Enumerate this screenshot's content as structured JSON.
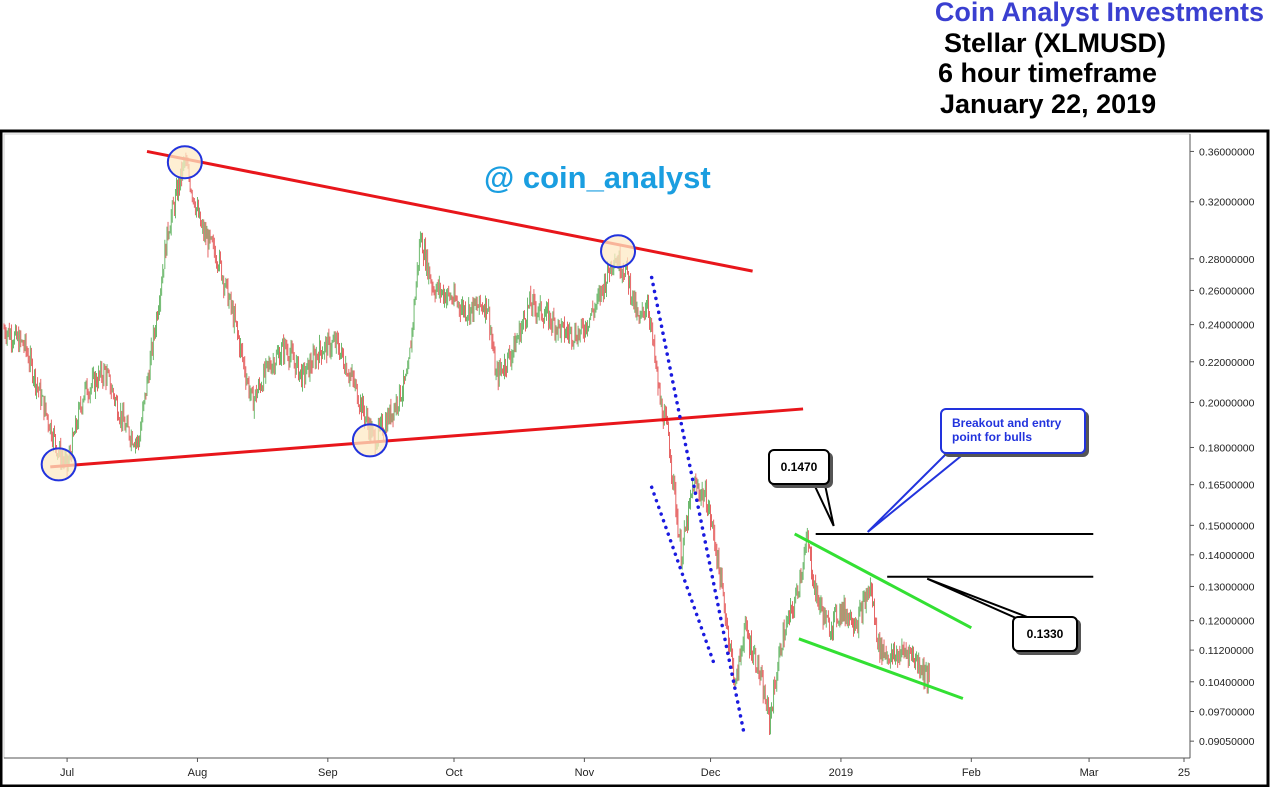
{
  "header": {
    "brand": "Coin Analyst Investments",
    "line1": "Stellar (XLMUSD)",
    "line2": "6 hour timeframe",
    "line3": "January 22, 2019"
  },
  "watermark": "@ coin_analyst",
  "callouts": {
    "level_high": "0.1470",
    "level_low": "0.1330",
    "breakout": "Breakout and entry point for bulls"
  },
  "colors": {
    "brand": "#3a3fd0",
    "handle": "#1a9ee0",
    "trendline": "#e8161b",
    "channel": "#33e033",
    "dotted": "#1a1adf",
    "circle": "#2233dd",
    "up_candle": "#4aa84a",
    "down_candle": "#e04040"
  },
  "chart_data": {
    "type": "line",
    "subtype": "candlestick",
    "timeframe": "6 hour",
    "x_ticks": [
      "Jul",
      "Aug",
      "Sep",
      "Oct",
      "Nov",
      "Dec",
      "2019",
      "Feb",
      "Mar",
      "25"
    ],
    "y_ticks": [
      "0.36000000",
      "0.32000000",
      "0.28000000",
      "0.26000000",
      "0.24000000",
      "0.22000000",
      "0.20000000",
      "0.18000000",
      "0.16500000",
      "0.15000000",
      "0.14000000",
      "0.13000000",
      "0.12000000",
      "0.11200000",
      "0.10400000",
      "0.09700000",
      "0.09050000"
    ],
    "y_scale": "log",
    "ylim": [
      0.087,
      0.375
    ],
    "xlim": [
      "2018-06-16",
      "2019-03-25"
    ],
    "price_path": [
      {
        "date": "2018-06-16",
        "close": 0.238
      },
      {
        "date": "2018-06-21",
        "close": 0.228
      },
      {
        "date": "2018-06-26",
        "close": 0.195
      },
      {
        "date": "2018-06-29",
        "close": 0.178
      },
      {
        "date": "2018-07-01",
        "close": 0.172
      },
      {
        "date": "2018-07-05",
        "close": 0.205
      },
      {
        "date": "2018-07-10",
        "close": 0.215
      },
      {
        "date": "2018-07-15",
        "close": 0.188
      },
      {
        "date": "2018-07-18",
        "close": 0.182
      },
      {
        "date": "2018-07-22",
        "close": 0.24
      },
      {
        "date": "2018-07-25",
        "close": 0.3
      },
      {
        "date": "2018-07-29",
        "close": 0.352
      },
      {
        "date": "2018-08-02",
        "close": 0.3
      },
      {
        "date": "2018-08-06",
        "close": 0.28
      },
      {
        "date": "2018-08-10",
        "close": 0.24
      },
      {
        "date": "2018-08-14",
        "close": 0.2
      },
      {
        "date": "2018-08-18",
        "close": 0.218
      },
      {
        "date": "2018-08-22",
        "close": 0.228
      },
      {
        "date": "2018-08-26",
        "close": 0.212
      },
      {
        "date": "2018-08-30",
        "close": 0.226
      },
      {
        "date": "2018-09-03",
        "close": 0.23
      },
      {
        "date": "2018-09-07",
        "close": 0.21
      },
      {
        "date": "2018-09-12",
        "close": 0.183
      },
      {
        "date": "2018-09-16",
        "close": 0.195
      },
      {
        "date": "2018-09-20",
        "close": 0.212
      },
      {
        "date": "2018-09-23",
        "close": 0.295
      },
      {
        "date": "2018-09-26",
        "close": 0.262
      },
      {
        "date": "2018-09-30",
        "close": 0.256
      },
      {
        "date": "2018-10-04",
        "close": 0.248
      },
      {
        "date": "2018-10-09",
        "close": 0.252
      },
      {
        "date": "2018-10-11",
        "close": 0.212
      },
      {
        "date": "2018-10-15",
        "close": 0.226
      },
      {
        "date": "2018-10-19",
        "close": 0.252
      },
      {
        "date": "2018-10-23",
        "close": 0.245
      },
      {
        "date": "2018-10-27",
        "close": 0.236
      },
      {
        "date": "2018-10-31",
        "close": 0.235
      },
      {
        "date": "2018-11-04",
        "close": 0.252
      },
      {
        "date": "2018-11-08",
        "close": 0.282
      },
      {
        "date": "2018-11-11",
        "close": 0.272
      },
      {
        "date": "2018-11-14",
        "close": 0.24
      },
      {
        "date": "2018-11-16",
        "close": 0.255
      },
      {
        "date": "2018-11-19",
        "close": 0.2
      },
      {
        "date": "2018-11-21",
        "close": 0.185
      },
      {
        "date": "2018-11-24",
        "close": 0.14
      },
      {
        "date": "2018-11-27",
        "close": 0.165
      },
      {
        "date": "2018-11-30",
        "close": 0.16
      },
      {
        "date": "2018-12-02",
        "close": 0.145
      },
      {
        "date": "2018-12-05",
        "close": 0.118
      },
      {
        "date": "2018-12-07",
        "close": 0.103
      },
      {
        "date": "2018-12-09",
        "close": 0.118
      },
      {
        "date": "2018-12-12",
        "close": 0.109
      },
      {
        "date": "2018-12-15",
        "close": 0.095
      },
      {
        "date": "2018-12-18",
        "close": 0.115
      },
      {
        "date": "2018-12-21",
        "close": 0.125
      },
      {
        "date": "2018-12-24",
        "close": 0.145
      },
      {
        "date": "2018-12-26",
        "close": 0.128
      },
      {
        "date": "2018-12-29",
        "close": 0.118
      },
      {
        "date": "2019-01-01",
        "close": 0.123
      },
      {
        "date": "2019-01-05",
        "close": 0.12
      },
      {
        "date": "2019-01-08",
        "close": 0.13
      },
      {
        "date": "2019-01-10",
        "close": 0.113
      },
      {
        "date": "2019-01-13",
        "close": 0.11
      },
      {
        "date": "2019-01-17",
        "close": 0.112
      },
      {
        "date": "2019-01-20",
        "close": 0.108
      },
      {
        "date": "2019-01-22",
        "close": 0.104
      }
    ],
    "trendlines": {
      "upper_resistance": [
        {
          "date": "2018-07-20",
          "price": 0.36
        },
        {
          "date": "2018-12-11",
          "price": 0.272
        }
      ],
      "lower_support": [
        {
          "date": "2018-06-27",
          "price": 0.172
        },
        {
          "date": "2018-12-23",
          "price": 0.197
        }
      ],
      "descending_channel_upper": [
        {
          "date": "2018-12-21",
          "price": 0.147
        },
        {
          "date": "2019-02-01",
          "price": 0.118
        }
      ],
      "descending_channel_lower": [
        {
          "date": "2018-12-22",
          "price": 0.115
        },
        {
          "date": "2019-01-30",
          "price": 0.1
        }
      ],
      "dotted_upper": [
        {
          "date": "2018-11-17",
          "price": 0.268
        },
        {
          "date": "2018-12-09",
          "price": 0.092
        }
      ],
      "dotted_lower": [
        {
          "date": "2018-11-17",
          "price": 0.164
        },
        {
          "date": "2018-12-02",
          "price": 0.108
        }
      ],
      "level_0_1470": [
        {
          "date": "2018-12-26",
          "price": 0.147
        },
        {
          "date": "2019-03-02",
          "price": 0.147
        }
      ],
      "level_0_1330": [
        {
          "date": "2019-01-12",
          "price": 0.133
        },
        {
          "date": "2019-03-02",
          "price": 0.133
        }
      ]
    },
    "touch_points": [
      {
        "date": "2018-06-29",
        "price": 0.173
      },
      {
        "date": "2018-07-29",
        "price": 0.351
      },
      {
        "date": "2018-09-11",
        "price": 0.183
      },
      {
        "date": "2018-11-09",
        "price": 0.285
      }
    ],
    "grid": false,
    "legend": "none"
  }
}
